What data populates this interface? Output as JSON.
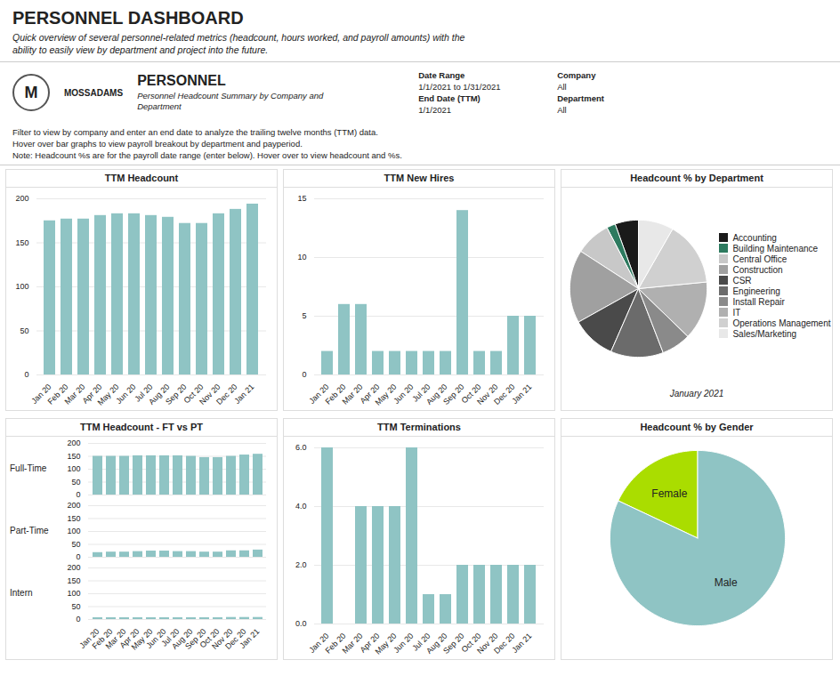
{
  "title": "PERSONNEL DASHBOARD",
  "subtitle": "Quick overview of several personnel-related metrics (headcount, hours worked, and payroll amounts) with the\nability to easily view by department and project into the future.",
  "annotations": [
    "M",
    "MOSSADAMS",
    "PERSONNEL",
    "Personnel Headcount Summary by Company and\nDepartment",
    "Date Range",
    "1/1/2021 to 1/31/2021",
    "End Date (TTM)",
    "1/1/2021",
    "Company",
    "All",
    "Department",
    "All",
    "Filter to view by company and enter an end date to analyze the trailing twelve months (TTM) data.\nHover over bar graphs to view payroll breakout by department and payperiod.\nNote: Headcount %s are for the payroll date range (enter below). Hover over to view headcount and %s."
  ],
  "chart_data": [
    {
      "type": "bar",
      "title": "TTM Headcount",
      "categories": [
        "Jan 20",
        "Feb 20",
        "Mar 20",
        "Apr 20",
        "May 20",
        "Jun 20",
        "Jul 20",
        "Aug 20",
        "Sep 20",
        "Oct 20",
        "Nov 20",
        "Dec 20",
        "Jan 21"
      ],
      "values": [
        175,
        177,
        177,
        181,
        183,
        183,
        181,
        179,
        172,
        172,
        183,
        188,
        194
      ],
      "color": "#8fc4c4",
      "ylim": [
        0,
        200
      ],
      "yticks": [
        0,
        50,
        100,
        150,
        200
      ],
      "grid": true
    },
    {
      "type": "bar",
      "title": "TTM New Hires",
      "categories": [
        "Jan 20",
        "Feb 20",
        "Mar 20",
        "Apr 20",
        "May 20",
        "Jun 20",
        "Jul 20",
        "Aug 20",
        "Sep 20",
        "Oct 20",
        "Nov 20",
        "Dec 20",
        "Jan 21"
      ],
      "values": [
        2,
        6,
        6,
        2,
        2,
        2,
        2,
        2,
        14,
        2,
        2,
        5,
        5
      ],
      "color": "#8fc4c4",
      "ylim": [
        0,
        15
      ],
      "yticks": [
        0,
        5,
        10,
        15
      ],
      "grid": true
    },
    {
      "type": "pie",
      "title": "Headcount % by Department",
      "categories": [
        "Accounting",
        "Building Maintenance",
        "Central Office",
        "Construction",
        "CSR",
        "Engineering",
        "Install Repair",
        "IT",
        "Operations Management",
        "Sales/Marketing"
      ],
      "values": [
        8,
        3,
        12,
        25,
        15,
        18,
        10,
        20,
        22,
        12
      ],
      "colors": [
        "#1a1a1a",
        "#2d7a5f",
        "#c8c8c8",
        "#a0a0a0",
        "#4a4a4a",
        "#6b6b6b",
        "#8a8a8a",
        "#b0b0b0",
        "#d0d0d0",
        "#e8e8e8"
      ],
      "annotations": [
        "January 2021"
      ],
      "legend": "right"
    },
    {
      "type": "bar",
      "title": "TTM Headcount - FT vs PT",
      "categories": [
        "Jan 20",
        "Feb 20",
        "Mar 20",
        "Apr 20",
        "May 20",
        "Jun 20",
        "Jul 20",
        "Aug 20",
        "Sep 20",
        "Oct 20",
        "Nov 20",
        "Dec 20",
        "Jan 21"
      ],
      "series": [
        {
          "name": "Full-Time",
          "color": "#8fc4c4",
          "values": [
            150,
            150,
            150,
            152,
            152,
            152,
            152,
            150,
            145,
            145,
            150,
            155,
            158
          ]
        },
        {
          "name": "Part-Time",
          "color": "#8fc4c4",
          "values": [
            18,
            20,
            20,
            22,
            24,
            24,
            22,
            22,
            20,
            20,
            25,
            25,
            28
          ]
        },
        {
          "name": "Intern",
          "color": "#8fc4c4",
          "values": [
            7,
            7,
            7,
            7,
            7,
            7,
            7,
            7,
            7,
            7,
            8,
            8,
            8
          ]
        }
      ],
      "ylim": [
        0,
        200
      ],
      "yticks": [
        0,
        50,
        100,
        150,
        200
      ],
      "grid": true
    },
    {
      "type": "bar",
      "title": "TTM Terminations",
      "categories": [
        "Jan 20",
        "Feb 20",
        "Mar 20",
        "Apr 20",
        "May 20",
        "Jun 20",
        "Jul 20",
        "Aug 20",
        "Sep 20",
        "Oct 20",
        "Nov 20",
        "Dec 20",
        "Jan 21"
      ],
      "values": [
        6,
        0,
        4,
        4,
        4,
        6,
        1,
        1,
        2,
        2,
        2,
        2,
        2
      ],
      "color": "#8fc4c4",
      "ylim": [
        0,
        6
      ],
      "yticks": [
        0,
        2,
        4,
        6
      ],
      "grid": true
    },
    {
      "type": "pie",
      "title": "Headcount % by Gender",
      "categories": [
        "Female",
        "Male"
      ],
      "values": [
        18,
        82
      ],
      "colors": [
        "#aadd00",
        "#8fc4c4"
      ]
    }
  ]
}
